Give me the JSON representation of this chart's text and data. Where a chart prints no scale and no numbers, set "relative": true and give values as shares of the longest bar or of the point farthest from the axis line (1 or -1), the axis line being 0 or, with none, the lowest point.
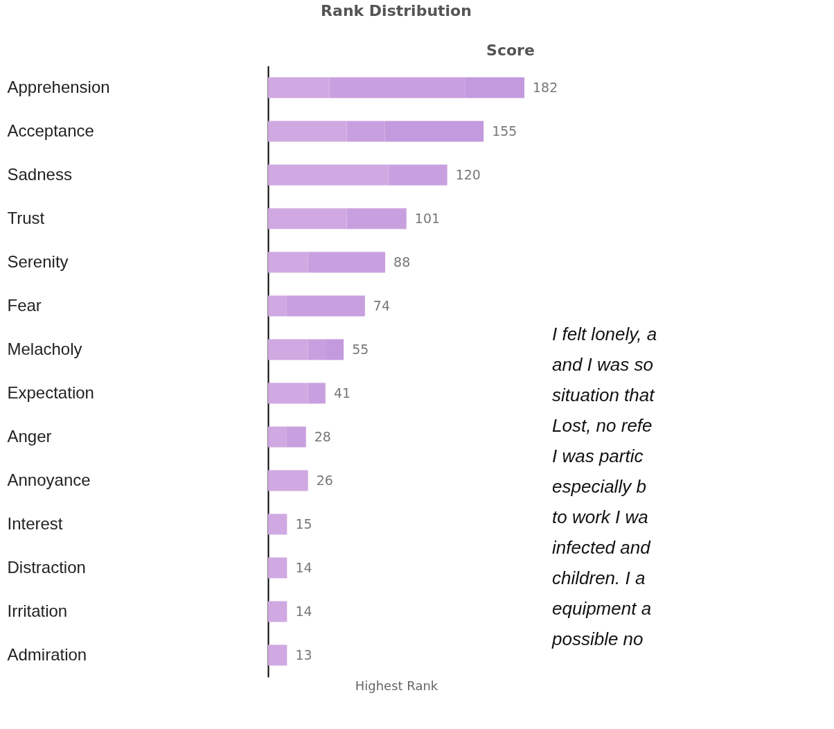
{
  "chart_data": {
    "type": "bar",
    "orientation": "horizontal",
    "stacked": true,
    "relative": true,
    "title": "Rank Distribution",
    "xlabel": "Highest Rank",
    "categories": [
      "Apprehension",
      "Acceptance",
      "Sadness",
      "Trust",
      "Serenity",
      "Fear",
      "Melacholy",
      "Expectation",
      "Anger",
      "Annoyance",
      "Interest",
      "Distraction",
      "Irritation",
      "Admiration"
    ],
    "series": [
      {
        "color": "#d0a9e2",
        "values": [
          0.239,
          0.307,
          0.469,
          0.307,
          0.156,
          0.071,
          0.156,
          0.156,
          0.071,
          0.156,
          0.074,
          0.074,
          0.074,
          0.074
        ]
      },
      {
        "color": "#c9a0df",
        "values": [
          0.531,
          0.148,
          0.23,
          0.233,
          0.301,
          0.307,
          0.071,
          0.068,
          0.077,
          null,
          null,
          null,
          null,
          null
        ]
      },
      {
        "color": "#c39ade",
        "values": [
          0.23,
          0.386,
          null,
          null,
          null,
          null,
          0.068,
          null,
          null,
          null,
          null,
          null,
          null,
          null
        ]
      }
    ],
    "annotations": [
      "Score",
      {
        "text": "182",
        "x": 1,
        "y": "Apprehension"
      },
      {
        "text": "155",
        "x": 0.841,
        "y": "Acceptance"
      },
      {
        "text": "120",
        "x": 0.699,
        "y": "Sadness"
      },
      {
        "text": "101",
        "x": 0.54,
        "y": "Trust"
      },
      {
        "text": "88",
        "x": 0.457,
        "y": "Serenity"
      },
      {
        "text": "74",
        "x": 0.378,
        "y": "Fear"
      },
      {
        "text": "55",
        "x": 0.295,
        "y": "Melacholy"
      },
      {
        "text": "41",
        "x": 0.224,
        "y": "Expectation"
      },
      {
        "text": "28",
        "x": 0.148,
        "y": "Anger"
      },
      {
        "text": "26",
        "x": 0.156,
        "y": "Annoyance"
      },
      {
        "text": "15",
        "x": 0.074,
        "y": "Interest"
      },
      {
        "text": "14",
        "x": 0.074,
        "y": "Distraction"
      },
      {
        "text": "14",
        "x": 0.074,
        "y": "Irritation"
      },
      {
        "text": "13",
        "x": 0.074,
        "y": "Admiration"
      },
      "I felt lonely, a",
      "and I was so",
      "situation that",
      "Lost, no refe",
      "I was partic",
      "especially b",
      "to work I wa",
      "infected and",
      "children. I a",
      "equipment a",
      "possible no"
    ]
  }
}
